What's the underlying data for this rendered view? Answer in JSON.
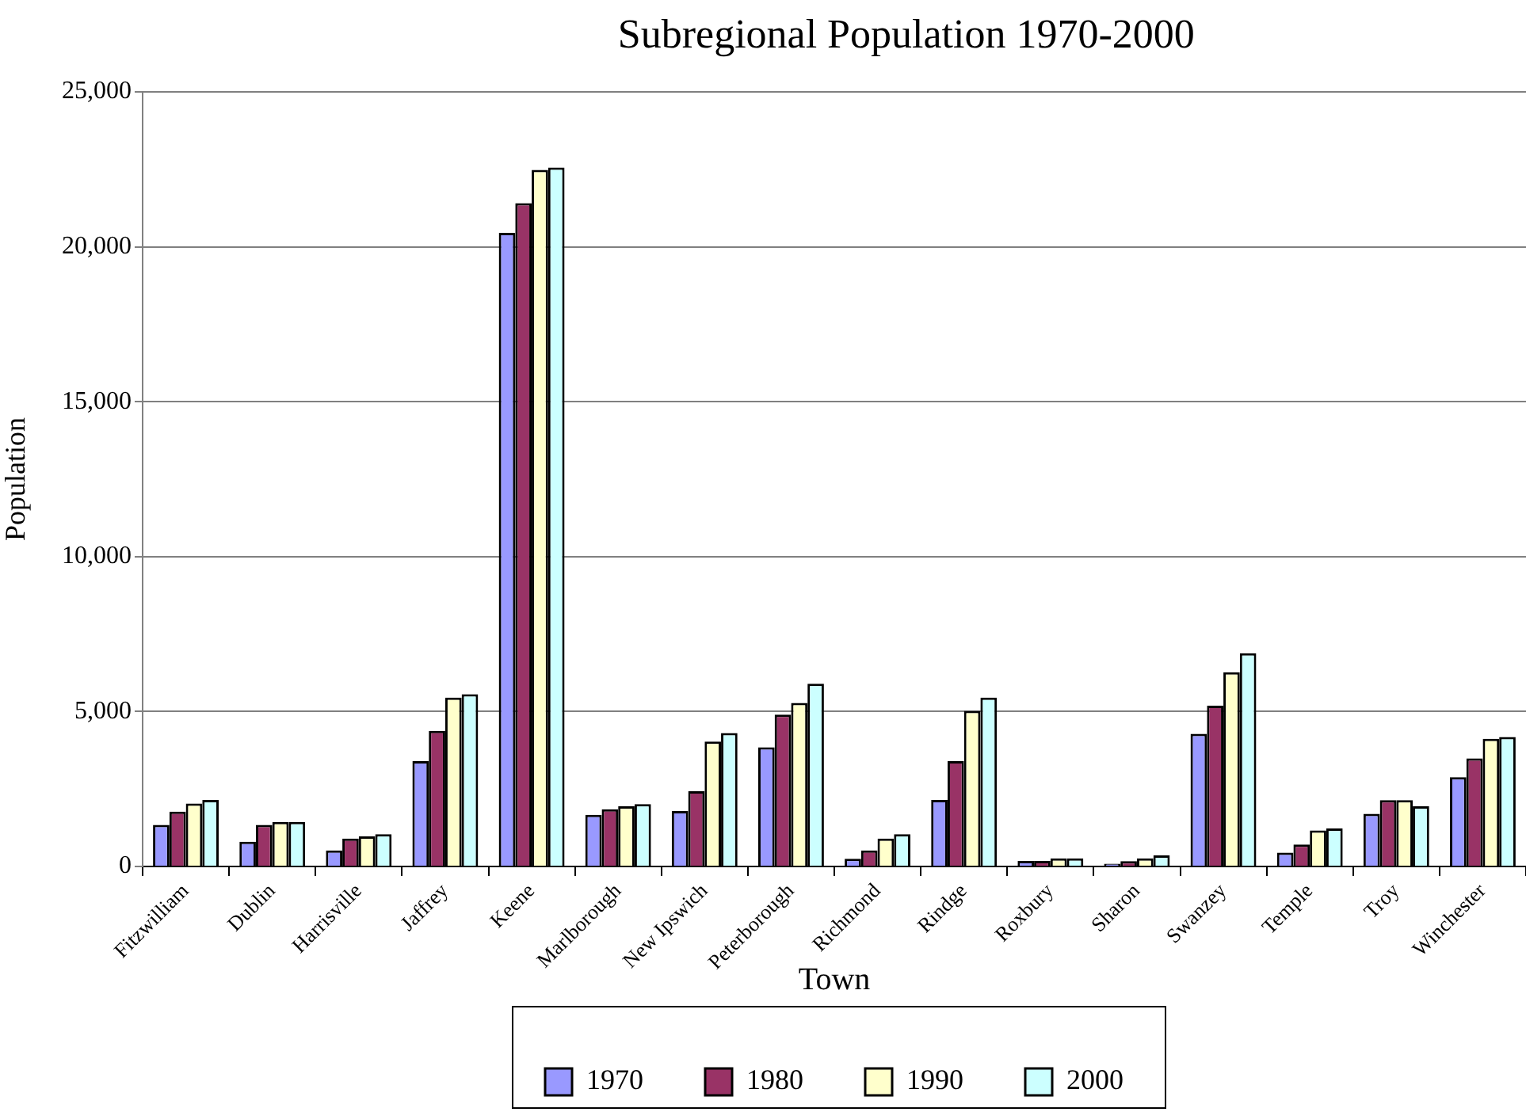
{
  "chart_data": {
    "type": "bar",
    "title": "Subregional Population 1970-2000",
    "xlabel": "Town",
    "ylabel": "Population",
    "categories": [
      "Fitzwilliam",
      "Dublin",
      "Harrisville",
      "Jaffrey",
      "Keene",
      "Marlborough",
      "New Ipswich",
      "Peterborough",
      "Richmond",
      "Rindge",
      "Roxbury",
      "Sharon",
      "Swanzey",
      "Temple",
      "Troy",
      "Winchester"
    ],
    "series": [
      {
        "name": "1970",
        "color": "#9999ff",
        "values": [
          1340,
          800,
          520,
          3400,
          20450,
          1670,
          1790,
          3850,
          250,
          2150,
          180,
          90,
          4280,
          450,
          1700,
          2880
        ]
      },
      {
        "name": "1980",
        "color": "#993366",
        "values": [
          1770,
          1340,
          900,
          4380,
          21410,
          1850,
          2430,
          4900,
          520,
          3400,
          180,
          170,
          5190,
          710,
          2140,
          3490
        ]
      },
      {
        "name": "1990",
        "color": "#ffffcc",
        "values": [
          2030,
          1440,
          970,
          5450,
          22480,
          1940,
          4030,
          5280,
          900,
          5020,
          260,
          260,
          6270,
          1160,
          2140,
          4120
        ]
      },
      {
        "name": "2000",
        "color": "#ccffff",
        "values": [
          2150,
          1440,
          1040,
          5560,
          22560,
          2010,
          4310,
          5900,
          1040,
          5450,
          260,
          360,
          6880,
          1230,
          1940,
          4180
        ]
      }
    ],
    "ylim": [
      0,
      25000
    ],
    "yticks": [
      0,
      {
        "value": 5000,
        "label": "5,000"
      },
      {
        "value": 10000,
        "label": "10,000"
      },
      {
        "value": 15000,
        "label": "15,000"
      },
      {
        "value": 20000,
        "label": "20,000"
      },
      {
        "value": 25000,
        "label": "25,000"
      }
    ],
    "grid": "y",
    "legend": "bottom"
  }
}
